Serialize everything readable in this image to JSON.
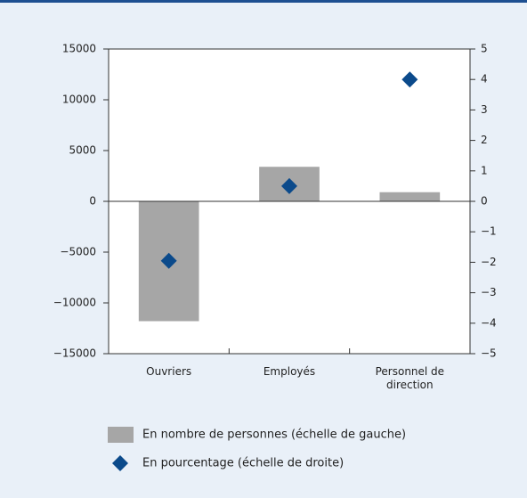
{
  "chart_data": {
    "type": "bar",
    "categories": [
      "Ouvriers",
      "Employés",
      "Personnel de direction"
    ],
    "series": [
      {
        "name": "En nombre de personnes (échelle de gauche)",
        "type": "bar",
        "color": "#a6a6a6",
        "values": [
          -11800,
          3400,
          900
        ]
      },
      {
        "name": "En pourcentage (échelle de droite)",
        "type": "scatter",
        "color": "#0b4a8b",
        "axis": "y2",
        "values": [
          -1.95,
          0.5,
          4
        ]
      }
    ],
    "ylim": [
      -15000,
      15000
    ],
    "yticks": [
      {
        "value": -15000,
        "label": "−15000"
      },
      {
        "value": -10000,
        "label": "−10000"
      },
      {
        "value": -5000,
        "label": "−5000"
      },
      0,
      5000,
      10000,
      15000
    ],
    "y2lim": [
      -5,
      5
    ],
    "y2ticks": [
      {
        "value": -5,
        "label": "−5"
      },
      {
        "value": -4,
        "label": "−4"
      },
      {
        "value": -3,
        "label": "−3"
      },
      {
        "value": -2,
        "label": "−2"
      },
      {
        "value": -1,
        "label": "−1"
      },
      0,
      1,
      2,
      3,
      4,
      5
    ],
    "grid": false
  }
}
